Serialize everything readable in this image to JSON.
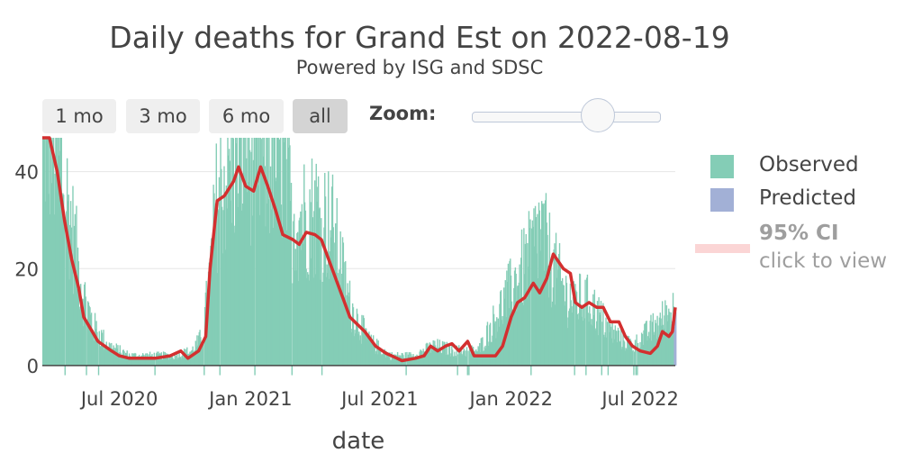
{
  "header": {
    "title": "Daily deaths for Grand Est on 2022-08-19",
    "subtitle": "Powered by ISG and SDSC"
  },
  "range_buttons": [
    {
      "label": "1 mo",
      "active": false
    },
    {
      "label": "3 mo",
      "active": false
    },
    {
      "label": "6 mo",
      "active": false
    },
    {
      "label": "all",
      "active": true
    }
  ],
  "zoom": {
    "label": "Zoom:",
    "level": 0.7
  },
  "legend": {
    "observed": "Observed",
    "predicted": "Predicted",
    "ci_title": "95% CI",
    "ci_hint": "click to view"
  },
  "colors": {
    "observed": "#84cdb6",
    "predicted": "#a2b0d6",
    "trend": "#d32f2f",
    "ci": "#fbd5d5",
    "grid": "#e6e6e6",
    "text": "#444444",
    "muted": "#9e9e9e"
  },
  "icons": {
    "slider": "slider-handle"
  },
  "chart_data": {
    "type": "bar",
    "xlabel": "date",
    "ylabel": "",
    "ylim": [
      -3,
      47
    ],
    "xlim": [
      "2020-03-15",
      "2022-08-19"
    ],
    "x_ticks": [
      "2020-07-01",
      "2021-01-01",
      "2021-07-01",
      "2022-01-01",
      "2022-07-01"
    ],
    "x_tick_labels": [
      "Jul 2020",
      "Jan 2021",
      "Jul 2021",
      "Jan 2022",
      "Jul 2022"
    ],
    "y_ticks": [
      0,
      20,
      40
    ],
    "grid": true,
    "legend_position": "right",
    "observed_anchors": [
      [
        "2020-03-15",
        48
      ],
      [
        "2020-03-25",
        48
      ],
      [
        "2020-04-10",
        40
      ],
      [
        "2020-04-25",
        28
      ],
      [
        "2020-05-10",
        15
      ],
      [
        "2020-05-25",
        8
      ],
      [
        "2020-06-15",
        4
      ],
      [
        "2020-07-15",
        2
      ],
      [
        "2020-08-15",
        2
      ],
      [
        "2020-09-15",
        2
      ],
      [
        "2020-10-10",
        3
      ],
      [
        "2020-10-25",
        6
      ],
      [
        "2020-11-05",
        20
      ],
      [
        "2020-11-15",
        36
      ],
      [
        "2020-12-01",
        40
      ],
      [
        "2020-12-20",
        46
      ],
      [
        "2021-01-15",
        42
      ],
      [
        "2021-02-10",
        45
      ],
      [
        "2021-03-01",
        30
      ],
      [
        "2021-04-05",
        32
      ],
      [
        "2021-04-25",
        28
      ],
      [
        "2021-05-20",
        12
      ],
      [
        "2021-06-15",
        5
      ],
      [
        "2021-07-15",
        2
      ],
      [
        "2021-08-15",
        2
      ],
      [
        "2021-09-15",
        4
      ],
      [
        "2021-10-15",
        3
      ],
      [
        "2021-11-15",
        3
      ],
      [
        "2021-12-10",
        10
      ],
      [
        "2022-01-01",
        16
      ],
      [
        "2022-01-25",
        22
      ],
      [
        "2022-02-10",
        28
      ],
      [
        "2022-03-01",
        20
      ],
      [
        "2022-03-20",
        14
      ],
      [
        "2022-04-20",
        13
      ],
      [
        "2022-05-20",
        7
      ],
      [
        "2022-06-20",
        4
      ],
      [
        "2022-07-20",
        8
      ],
      [
        "2022-08-19",
        12
      ]
    ],
    "trend": [
      [
        "2020-03-15",
        55
      ],
      [
        "2020-03-25",
        50
      ],
      [
        "2020-04-05",
        40
      ],
      [
        "2020-04-15",
        30
      ],
      [
        "2020-04-25",
        22
      ],
      [
        "2020-05-05",
        16
      ],
      [
        "2020-05-12",
        10
      ],
      [
        "2020-05-20",
        8
      ],
      [
        "2020-06-01",
        5
      ],
      [
        "2020-06-20",
        3
      ],
      [
        "2020-07-01",
        2
      ],
      [
        "2020-07-15",
        1.5
      ],
      [
        "2020-08-01",
        1.5
      ],
      [
        "2020-08-20",
        1.5
      ],
      [
        "2020-09-10",
        2
      ],
      [
        "2020-09-25",
        3
      ],
      [
        "2020-10-05",
        1.5
      ],
      [
        "2020-10-20",
        3
      ],
      [
        "2020-10-30",
        6
      ],
      [
        "2020-11-05",
        20
      ],
      [
        "2020-11-15",
        34
      ],
      [
        "2020-11-25",
        35
      ],
      [
        "2020-12-08",
        38
      ],
      [
        "2020-12-15",
        41
      ],
      [
        "2020-12-25",
        37
      ],
      [
        "2021-01-05",
        36
      ],
      [
        "2021-01-15",
        41
      ],
      [
        "2021-01-25",
        37
      ],
      [
        "2021-02-05",
        32
      ],
      [
        "2021-02-15",
        27
      ],
      [
        "2021-03-01",
        26
      ],
      [
        "2021-03-10",
        25
      ],
      [
        "2021-03-20",
        27.5
      ],
      [
        "2021-04-01",
        27
      ],
      [
        "2021-04-10",
        26
      ],
      [
        "2021-04-25",
        20
      ],
      [
        "2021-05-10",
        14
      ],
      [
        "2021-05-20",
        10
      ],
      [
        "2021-06-10",
        7
      ],
      [
        "2021-06-25",
        4
      ],
      [
        "2021-07-10",
        2.5
      ],
      [
        "2021-07-25",
        1.5
      ],
      [
        "2021-08-01",
        1
      ],
      [
        "2021-08-20",
        1.5
      ],
      [
        "2021-09-01",
        2
      ],
      [
        "2021-09-10",
        4
      ],
      [
        "2021-09-20",
        3
      ],
      [
        "2021-10-01",
        4
      ],
      [
        "2021-10-10",
        4.5
      ],
      [
        "2021-10-20",
        3
      ],
      [
        "2021-11-01",
        5
      ],
      [
        "2021-11-10",
        2
      ],
      [
        "2021-11-25",
        2
      ],
      [
        "2021-12-10",
        2
      ],
      [
        "2021-12-20",
        4
      ],
      [
        "2022-01-01",
        10
      ],
      [
        "2022-01-10",
        13
      ],
      [
        "2022-01-20",
        14
      ],
      [
        "2022-02-01",
        17
      ],
      [
        "2022-02-10",
        15
      ],
      [
        "2022-02-20",
        18
      ],
      [
        "2022-03-01",
        23
      ],
      [
        "2022-03-15",
        20
      ],
      [
        "2022-03-25",
        19
      ],
      [
        "2022-04-01",
        13
      ],
      [
        "2022-04-10",
        12
      ],
      [
        "2022-04-20",
        13
      ],
      [
        "2022-05-01",
        12
      ],
      [
        "2022-05-10",
        12
      ],
      [
        "2022-05-20",
        9
      ],
      [
        "2022-06-01",
        9
      ],
      [
        "2022-06-10",
        6
      ],
      [
        "2022-06-20",
        4
      ],
      [
        "2022-07-01",
        3
      ],
      [
        "2022-07-15",
        2.5
      ],
      [
        "2022-07-25",
        4
      ],
      [
        "2022-08-01",
        7
      ],
      [
        "2022-08-10",
        6
      ],
      [
        "2022-08-15",
        7
      ],
      [
        "2022-08-19",
        12
      ]
    ],
    "predicted": [
      [
        "2022-08-17",
        8
      ],
      [
        "2022-08-18",
        10
      ],
      [
        "2022-08-19",
        11
      ]
    ]
  }
}
